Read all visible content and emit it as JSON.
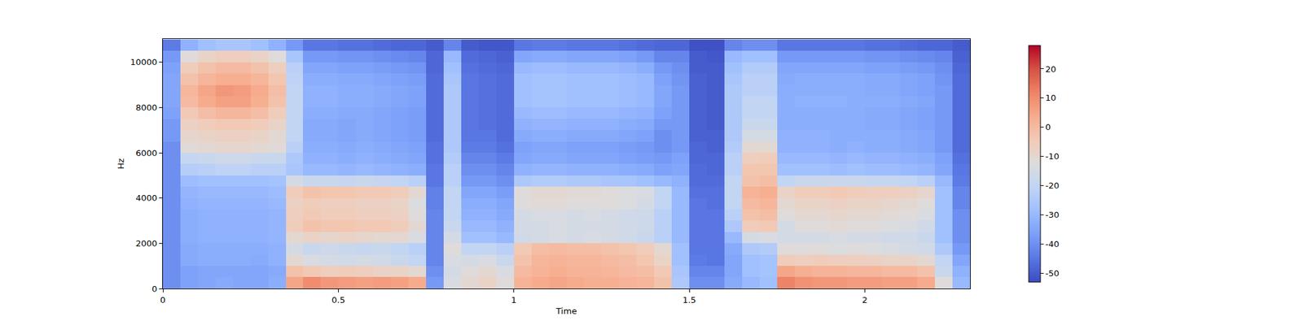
{
  "chart_data": {
    "type": "heatmap",
    "x_label": "Time",
    "y_label": "Hz",
    "xlim": [
      0,
      2.3
    ],
    "xticks": [
      0,
      0.5,
      1,
      1.5,
      2
    ],
    "ylim": [
      0,
      11025
    ],
    "yticks": [
      0,
      2000,
      4000,
      6000,
      8000,
      10000
    ],
    "grid": false,
    "colorbar": {
      "range": [
        -53,
        28
      ],
      "ticks": [
        -50,
        -40,
        -30,
        -20,
        -10,
        0,
        10,
        20
      ]
    },
    "x": [
      0.025,
      0.075,
      0.125,
      0.175,
      0.225,
      0.275,
      0.325,
      0.375,
      0.425,
      0.475,
      0.525,
      0.575,
      0.625,
      0.675,
      0.725,
      0.775,
      0.825,
      0.875,
      0.925,
      0.975,
      1.025,
      1.075,
      1.125,
      1.175,
      1.225,
      1.275,
      1.325,
      1.375,
      1.425,
      1.475,
      1.525,
      1.575,
      1.625,
      1.675,
      1.725,
      1.775,
      1.825,
      1.875,
      1.925,
      1.975,
      2.025,
      2.075,
      2.125,
      2.175,
      2.225,
      2.275
    ],
    "y": [
      250,
      750,
      1250,
      1750,
      2250,
      2750,
      3250,
      3750,
      4250,
      4750,
      5250,
      5750,
      6250,
      6750,
      7250,
      7750,
      8250,
      8750,
      9250,
      9750,
      10250,
      10750
    ],
    "z": [
      [
        -40,
        -36,
        -35,
        -34,
        -35,
        -35,
        -33,
        5,
        10,
        8,
        7,
        6,
        7,
        6,
        4,
        -38,
        -14,
        -10,
        -8,
        -12,
        2,
        4,
        5,
        4,
        3,
        3,
        2,
        1,
        -2,
        -25,
        -40,
        -40,
        -34,
        -30,
        -28,
        12,
        9,
        8,
        8,
        7,
        7,
        6,
        6,
        4,
        -12,
        -30
      ],
      [
        -40,
        -36,
        -35,
        -35,
        -35,
        -35,
        -34,
        -2,
        -4,
        -6,
        -5,
        -6,
        -8,
        -8,
        -10,
        -40,
        -15,
        -12,
        -10,
        -14,
        0,
        2,
        3,
        2,
        2,
        1,
        0,
        -1,
        -4,
        -26,
        -42,
        -42,
        -35,
        -28,
        -27,
        5,
        3,
        2,
        2,
        1,
        1,
        0,
        0,
        -2,
        -18,
        -32
      ],
      [
        -40,
        -34,
        -33,
        -33,
        -33,
        -34,
        -32,
        -10,
        -14,
        -15,
        -16,
        -15,
        -16,
        -18,
        -20,
        -42,
        -14,
        -15,
        -14,
        -18,
        -2,
        1,
        2,
        1,
        1,
        0,
        -1,
        -3,
        -8,
        -28,
        -44,
        -45,
        -35,
        -28,
        -27,
        -5,
        -6,
        -5,
        -6,
        -6,
        -7,
        -8,
        -8,
        -10,
        -20,
        -35
      ],
      [
        -40,
        -34,
        -33,
        -33,
        -33,
        -33,
        -32,
        -15,
        -18,
        -17,
        -18,
        -19,
        -18,
        -20,
        -22,
        -42,
        -12,
        -20,
        -20,
        -22,
        -4,
        -1,
        0,
        -1,
        -1,
        -2,
        -3,
        -5,
        -10,
        -28,
        -45,
        -45,
        -34,
        -25,
        -24,
        -12,
        -12,
        -12,
        -13,
        -12,
        -13,
        -14,
        -15,
        -16,
        -25,
        -38
      ],
      [
        -40,
        -33,
        -32,
        -32,
        -32,
        -32,
        -31,
        -10,
        -8,
        -9,
        -8,
        -9,
        -10,
        -10,
        -14,
        -42,
        -15,
        -28,
        -28,
        -30,
        -16,
        -15,
        -14,
        -15,
        -14,
        -15,
        -16,
        -18,
        -22,
        -30,
        -45,
        -45,
        -30,
        -15,
        -14,
        -15,
        -15,
        -15,
        -14,
        -15,
        -15,
        -16,
        -16,
        -18,
        -28,
        -40
      ],
      [
        -40,
        -33,
        -32,
        -32,
        -32,
        -32,
        -31,
        -5,
        -2,
        -3,
        -3,
        -4,
        -4,
        -5,
        -10,
        -42,
        -18,
        -30,
        -30,
        -32,
        -15,
        -15,
        -14,
        -15,
        -15,
        -15,
        -16,
        -17,
        -22,
        -30,
        -45,
        -45,
        -25,
        -5,
        -4,
        -15,
        -12,
        -12,
        -11,
        -12,
        -12,
        -13,
        -14,
        -16,
        -28,
        -40
      ],
      [
        -40,
        -33,
        -32,
        -32,
        -32,
        -32,
        -31,
        -6,
        -4,
        -5,
        -5,
        -6,
        -6,
        -7,
        -12,
        -42,
        -20,
        -32,
        -32,
        -34,
        -15,
        -14,
        -14,
        -15,
        -14,
        -15,
        -16,
        -17,
        -22,
        -30,
        -45,
        -45,
        -22,
        -2,
        -1,
        -12,
        -10,
        -10,
        -9,
        -10,
        -10,
        -11,
        -12,
        -14,
        -28,
        -40
      ],
      [
        -40,
        -32,
        -31,
        -31,
        -31,
        -31,
        -30,
        -7,
        -5,
        -6,
        -6,
        -7,
        -7,
        -8,
        -13,
        -43,
        -20,
        -33,
        -33,
        -35,
        -12,
        -11,
        -11,
        -12,
        -12,
        -12,
        -13,
        -15,
        -20,
        -30,
        -45,
        -46,
        -20,
        0,
        1,
        -10,
        -8,
        -8,
        -7,
        -8,
        -8,
        -9,
        -10,
        -12,
        -28,
        -42
      ],
      [
        -40,
        -31,
        -30,
        -30,
        -30,
        -30,
        -29,
        -5,
        -2,
        -3,
        -3,
        -4,
        -4,
        -5,
        -10,
        -43,
        -20,
        -35,
        -35,
        -37,
        -12,
        -10,
        -10,
        -11,
        -11,
        -12,
        -13,
        -14,
        -20,
        -30,
        -46,
        -46,
        -20,
        2,
        3,
        -8,
        -5,
        -5,
        -4,
        -5,
        -6,
        -6,
        -7,
        -9,
        -28,
        -42
      ],
      [
        -40,
        -29,
        -28,
        -28,
        -28,
        -28,
        -27,
        -15,
        -18,
        -18,
        -19,
        -18,
        -19,
        -20,
        -22,
        -45,
        -22,
        -38,
        -38,
        -40,
        -25,
        -24,
        -24,
        -25,
        -25,
        -26,
        -26,
        -28,
        -30,
        -32,
        -47,
        -47,
        -20,
        -2,
        -1,
        -20,
        -18,
        -18,
        -18,
        -18,
        -19,
        -19,
        -20,
        -22,
        -30,
        -44
      ],
      [
        -40,
        -23,
        -22,
        -21,
        -21,
        -22,
        -22,
        -26,
        -30,
        -30,
        -31,
        -30,
        -31,
        -32,
        -33,
        -45,
        -22,
        -40,
        -40,
        -42,
        -32,
        -31,
        -31,
        -32,
        -32,
        -32,
        -33,
        -34,
        -36,
        -35,
        -47,
        -48,
        -22,
        -3,
        -3,
        -28,
        -28,
        -28,
        -29,
        -28,
        -29,
        -29,
        -30,
        -31,
        -35,
        -45
      ],
      [
        -40,
        -19,
        -18,
        -17,
        -17,
        -18,
        -18,
        -25,
        -32,
        -32,
        -33,
        -32,
        -33,
        -34,
        -35,
        -46,
        -24,
        -42,
        -42,
        -44,
        -35,
        -34,
        -34,
        -35,
        -35,
        -35,
        -36,
        -37,
        -38,
        -36,
        -48,
        -48,
        -22,
        -6,
        -5,
        -30,
        -30,
        -30,
        -31,
        -30,
        -31,
        -31,
        -32,
        -33,
        -36,
        -46
      ],
      [
        -40,
        -11,
        -10,
        -9,
        -9,
        -10,
        -11,
        -22,
        -33,
        -33,
        -34,
        -33,
        -34,
        -35,
        -36,
        -46,
        -25,
        -44,
        -44,
        -46,
        -36,
        -35,
        -35,
        -36,
        -36,
        -36,
        -37,
        -38,
        -40,
        -38,
        -48,
        -49,
        -24,
        -10,
        -10,
        -32,
        -32,
        -32,
        -33,
        -32,
        -33,
        -33,
        -34,
        -35,
        -38,
        -47
      ],
      [
        -38,
        -9,
        -8,
        -7,
        -7,
        -8,
        -10,
        -20,
        -34,
        -34,
        -35,
        -34,
        -35,
        -36,
        -37,
        -47,
        -25,
        -45,
        -45,
        -47,
        -34,
        -33,
        -33,
        -34,
        -34,
        -34,
        -35,
        -36,
        -40,
        -38,
        -49,
        -49,
        -25,
        -15,
        -15,
        -32,
        -32,
        -32,
        -33,
        -33,
        -33,
        -33,
        -34,
        -35,
        -38,
        -47
      ],
      [
        -38,
        -7,
        -5,
        -4,
        -4,
        -5,
        -8,
        -20,
        -34,
        -34,
        -35,
        -34,
        -35,
        -36,
        -37,
        -47,
        -25,
        -45,
        -46,
        -47,
        -32,
        -31,
        -31,
        -32,
        -32,
        -32,
        -33,
        -34,
        -38,
        -38,
        -49,
        -50,
        -25,
        -18,
        -18,
        -33,
        -33,
        -33,
        -33,
        -33,
        -34,
        -34,
        -35,
        -36,
        -38,
        -47
      ],
      [
        -36,
        -4,
        -1,
        1,
        1,
        -1,
        -5,
        -20,
        -33,
        -33,
        -34,
        -34,
        -35,
        -36,
        -37,
        -47,
        -25,
        -45,
        -46,
        -47,
        -30,
        -29,
        -29,
        -30,
        -30,
        -30,
        -31,
        -32,
        -36,
        -38,
        -49,
        -50,
        -25,
        -20,
        -20,
        -33,
        -33,
        -33,
        -33,
        -33,
        -34,
        -34,
        -35,
        -36,
        -38,
        -47
      ],
      [
        -35,
        0,
        4,
        6,
        6,
        3,
        -2,
        -20,
        -32,
        -32,
        -33,
        -33,
        -34,
        -35,
        -36,
        -47,
        -25,
        -45,
        -46,
        -47,
        -28,
        -27,
        -27,
        -28,
        -28,
        -28,
        -29,
        -30,
        -35,
        -38,
        -49,
        -50,
        -25,
        -20,
        -20,
        -33,
        -32,
        -32,
        -32,
        -33,
        -33,
        -33,
        -34,
        -35,
        -38,
        -47
      ],
      [
        -35,
        1,
        5,
        8,
        7,
        4,
        -1,
        -20,
        -32,
        -32,
        -33,
        -33,
        -34,
        -35,
        -36,
        -47,
        -25,
        -45,
        -46,
        -47,
        -28,
        -27,
        -27,
        -28,
        -28,
        -28,
        -29,
        -30,
        -35,
        -38,
        -49,
        -50,
        -25,
        -22,
        -22,
        -33,
        -33,
        -33,
        -33,
        -33,
        -34,
        -34,
        -35,
        -36,
        -38,
        -47
      ],
      [
        -35,
        -2,
        1,
        3,
        3,
        1,
        -3,
        -21,
        -33,
        -33,
        -34,
        -34,
        -35,
        -36,
        -37,
        -47,
        -26,
        -45,
        -46,
        -47,
        -28,
        -27,
        -27,
        -28,
        -28,
        -28,
        -29,
        -30,
        -36,
        -39,
        -49,
        -50,
        -26,
        -22,
        -22,
        -34,
        -33,
        -33,
        -33,
        -33,
        -34,
        -34,
        -35,
        -36,
        -39,
        -47
      ],
      [
        -36,
        -5,
        -2,
        0,
        0,
        -2,
        -6,
        -22,
        -35,
        -35,
        -36,
        -36,
        -37,
        -38,
        -39,
        -48,
        -28,
        -46,
        -47,
        -48,
        -30,
        -29,
        -29,
        -30,
        -30,
        -30,
        -31,
        -33,
        -38,
        -40,
        -50,
        -50,
        -28,
        -24,
        -24,
        -35,
        -35,
        -35,
        -35,
        -35,
        -36,
        -36,
        -37,
        -38,
        -40,
        -48
      ],
      [
        -38,
        -12,
        -8,
        -6,
        -6,
        -8,
        -12,
        -26,
        -38,
        -38,
        -39,
        -39,
        -40,
        -41,
        -42,
        -48,
        -30,
        -47,
        -48,
        -49,
        -35,
        -34,
        -34,
        -35,
        -35,
        -35,
        -36,
        -38,
        -42,
        -42,
        -50,
        -51,
        -30,
        -28,
        -28,
        -38,
        -38,
        -38,
        -38,
        -38,
        -39,
        -39,
        -40,
        -41,
        -42,
        -49
      ],
      [
        -44,
        -32,
        -28,
        -26,
        -26,
        -28,
        -32,
        -38,
        -45,
        -45,
        -46,
        -46,
        -47,
        -48,
        -48,
        -50,
        -42,
        -50,
        -51,
        -51,
        -45,
        -44,
        -44,
        -45,
        -45,
        -45,
        -46,
        -47,
        -48,
        -48,
        -52,
        -52,
        -42,
        -40,
        -40,
        -45,
        -45,
        -45,
        -45,
        -45,
        -46,
        -46,
        -47,
        -48,
        -48,
        -50
      ]
    ]
  }
}
